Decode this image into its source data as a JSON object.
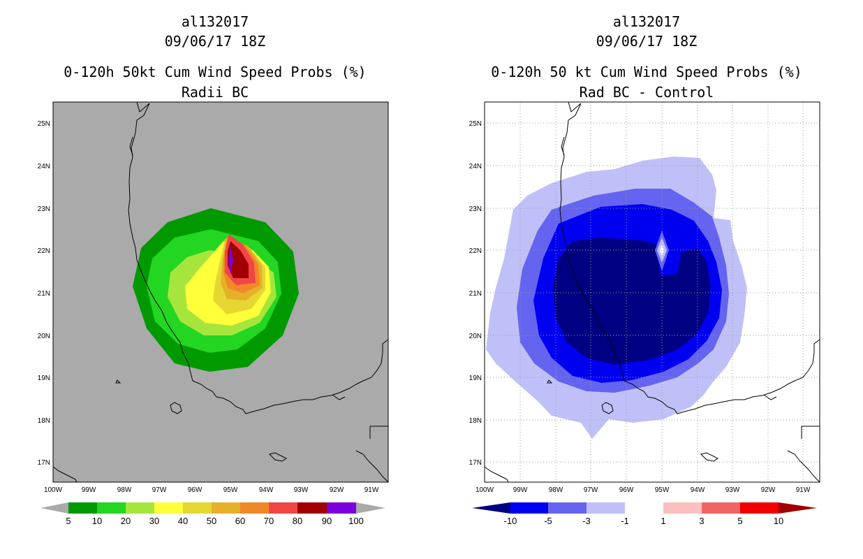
{
  "left_panel": {
    "title_line1": "al132017",
    "title_line2": "09/06/17 18Z",
    "title_line3": "0-120h 50kt Cum Wind Speed Probs (%)",
    "title_line4": "Radii BC",
    "lat_labels": [
      "25N",
      "24N",
      "23N",
      "22N",
      "21N",
      "20N",
      "19N",
      "18N",
      "17N"
    ],
    "lon_labels": [
      "100W",
      "99W",
      "98W",
      "97W",
      "96W",
      "95W",
      "94W",
      "93W",
      "92W",
      "91W"
    ],
    "legend_labels": [
      "5",
      "10",
      "20",
      "30",
      "40",
      "50",
      "60",
      "70",
      "80",
      "90",
      "100"
    ],
    "legend_colors": [
      "#009a00",
      "#22d622",
      "#a6e63c",
      "#ffff3a",
      "#e6d632",
      "#e6b028",
      "#f08828",
      "#f04646",
      "#a00000",
      "#7a00dc"
    ]
  },
  "right_panel": {
    "title_line1": "al132017",
    "title_line2": "09/06/17 18Z",
    "title_line3": "0-120h 50 kt Cum Wind Speed Probs (%)",
    "title_line4": "Rad BC - Control",
    "lat_labels": [
      "25N",
      "24N",
      "23N",
      "22N",
      "21N",
      "20N",
      "19N",
      "18N",
      "17N"
    ],
    "lon_labels": [
      "100W",
      "99W",
      "98W",
      "97W",
      "96W",
      "95W",
      "94W",
      "93W",
      "92W",
      "91W"
    ],
    "legend_labels": [
      "-10",
      "-5",
      "-3",
      "-1",
      "1",
      "3",
      "5",
      "10"
    ],
    "legend_colors": [
      "#000082",
      "#0000f0",
      "#6464f0",
      "#c0c0f8",
      "#ffffff",
      "#fac0c0",
      "#f06464",
      "#f00000",
      "#a00000"
    ]
  }
}
